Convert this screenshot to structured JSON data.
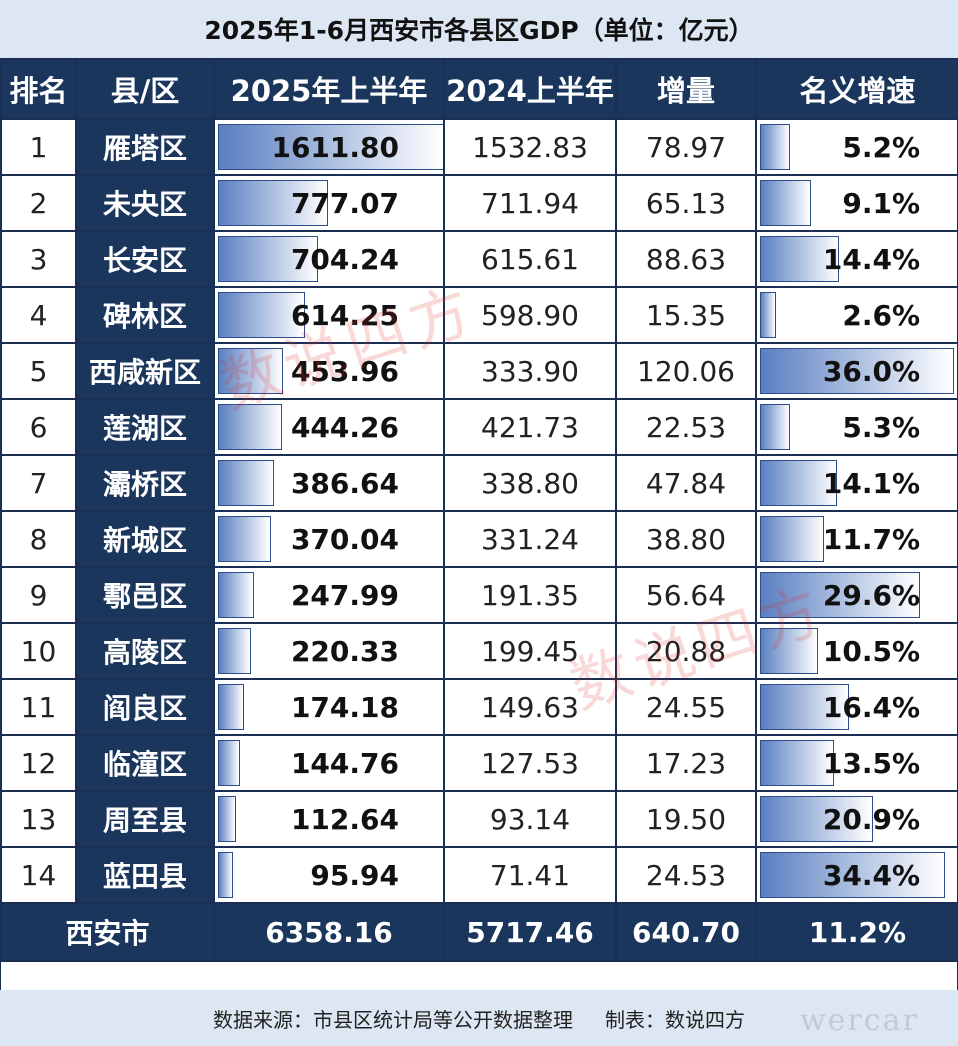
{
  "title": "2025年1-6月西安市各县区GDP（单位：亿元）",
  "headers": [
    "排名",
    "县/区",
    "2025年上半年",
    "2024上半年",
    "增量",
    "名义增速"
  ],
  "total": {
    "name": "西安市",
    "h1_2025": "6358.16",
    "h1_2024": "5717.46",
    "increase": "640.70",
    "growth": "11.2%"
  },
  "footer": {
    "source": "数据来源：市县区统计局等公开数据整理",
    "author": "制表：数说四方"
  },
  "watermarks": [
    "数说四方",
    "数说四方",
    "wercar"
  ],
  "colors": {
    "header": "#1b365d",
    "title_bg": "#dde6f3",
    "bar": "#5a7fc1",
    "watermark": "#dc2828"
  },
  "chart_data": {
    "type": "table",
    "columns": [
      "排名",
      "县/区",
      "2025年上半年",
      "2024上半年",
      "增量",
      "名义增速"
    ],
    "rows": [
      {
        "rank": "1",
        "name": "雁塔区",
        "h1_2025": "1611.80",
        "h1_2024": "1532.83",
        "increase": "78.97",
        "growth": "5.2%"
      },
      {
        "rank": "2",
        "name": "未央区",
        "h1_2025": "777.07",
        "h1_2024": "711.94",
        "increase": "65.13",
        "growth": "9.1%"
      },
      {
        "rank": "3",
        "name": "长安区",
        "h1_2025": "704.24",
        "h1_2024": "615.61",
        "increase": "88.63",
        "growth": "14.4%"
      },
      {
        "rank": "4",
        "name": "碑林区",
        "h1_2025": "614.25",
        "h1_2024": "598.90",
        "increase": "15.35",
        "growth": "2.6%"
      },
      {
        "rank": "5",
        "name": "西咸新区",
        "h1_2025": "453.96",
        "h1_2024": "333.90",
        "increase": "120.06",
        "growth": "36.0%"
      },
      {
        "rank": "6",
        "name": "莲湖区",
        "h1_2025": "444.26",
        "h1_2024": "421.73",
        "increase": "22.53",
        "growth": "5.3%"
      },
      {
        "rank": "7",
        "name": "灞桥区",
        "h1_2025": "386.64",
        "h1_2024": "338.80",
        "increase": "47.84",
        "growth": "14.1%"
      },
      {
        "rank": "8",
        "name": "新城区",
        "h1_2025": "370.04",
        "h1_2024": "331.24",
        "increase": "38.80",
        "growth": "11.7%"
      },
      {
        "rank": "9",
        "name": "鄠邑区",
        "h1_2025": "247.99",
        "h1_2024": "191.35",
        "increase": "56.64",
        "growth": "29.6%"
      },
      {
        "rank": "10",
        "name": "高陵区",
        "h1_2025": "220.33",
        "h1_2024": "199.45",
        "increase": "20.88",
        "growth": "10.5%"
      },
      {
        "rank": "11",
        "name": "阎良区",
        "h1_2025": "174.18",
        "h1_2024": "149.63",
        "increase": "24.55",
        "growth": "16.4%"
      },
      {
        "rank": "12",
        "name": "临潼区",
        "h1_2025": "144.76",
        "h1_2024": "127.53",
        "increase": "17.23",
        "growth": "13.5%"
      },
      {
        "rank": "13",
        "name": "周至县",
        "h1_2025": "112.64",
        "h1_2024": "93.14",
        "increase": "19.50",
        "growth": "20.9%"
      },
      {
        "rank": "14",
        "name": "蓝田县",
        "h1_2025": "95.94",
        "h1_2024": "71.41",
        "increase": "24.53",
        "growth": "34.4%"
      }
    ]
  }
}
